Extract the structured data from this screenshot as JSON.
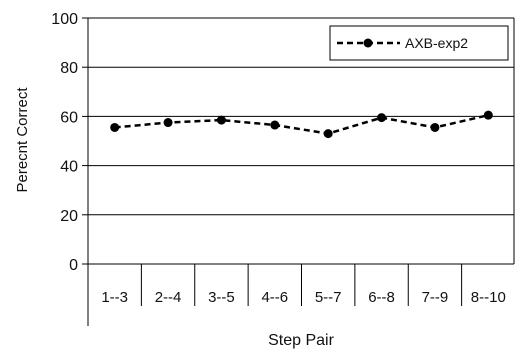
{
  "chart_data": {
    "type": "line",
    "title": "",
    "xlabel": "Step Pair",
    "ylabel": "Perecnt Correct",
    "ylim": [
      0,
      100
    ],
    "yticks": [
      0,
      20,
      40,
      60,
      80,
      100
    ],
    "categories": [
      "1--3",
      "2--4",
      "3--5",
      "4--6",
      "5--7",
      "6--8",
      "7--9",
      "8--10"
    ],
    "series": [
      {
        "name": "AXB-exp2",
        "values": [
          55.5,
          57.5,
          58.5,
          56.5,
          53.0,
          59.5,
          55.5,
          60.5
        ],
        "color": "#000000",
        "line_style": "dashed",
        "marker": "circle"
      }
    ],
    "grid": "horizontal",
    "legend_position": "top-right"
  }
}
